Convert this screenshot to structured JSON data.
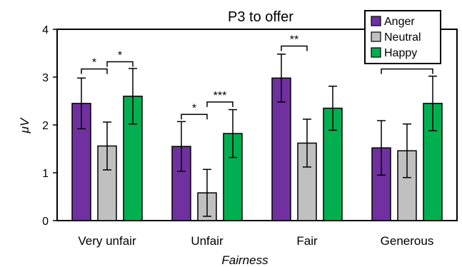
{
  "chart_data": {
    "type": "bar",
    "title": "P3 to offer",
    "xlabel": "Fairness",
    "ylabel": "μV",
    "ylim": [
      0,
      4
    ],
    "yticks": [
      "0",
      "1",
      "2",
      "3",
      "4"
    ],
    "grid": false,
    "legend_position": "top-right",
    "categories": [
      "Very unfair",
      "Unfair",
      "Fair",
      "Generous"
    ],
    "series": [
      {
        "name": "Anger",
        "color": "#7030a0",
        "values": [
          2.45,
          1.55,
          2.98,
          1.52
        ],
        "errors": [
          0.53,
          0.52,
          0.5,
          0.57
        ]
      },
      {
        "name": "Neutral",
        "color": "#c0c0c0",
        "values": [
          1.56,
          0.58,
          1.62,
          1.46
        ],
        "errors": [
          0.5,
          0.49,
          0.5,
          0.56
        ]
      },
      {
        "name": "Happy",
        "color": "#00b050",
        "values": [
          2.6,
          1.82,
          2.35,
          2.45
        ],
        "errors": [
          0.58,
          0.5,
          0.46,
          0.57
        ]
      }
    ],
    "annotations": [
      {
        "category": 0,
        "from": 0,
        "to": 1,
        "label": "*",
        "y": 3.17
      },
      {
        "category": 0,
        "from": 1,
        "to": 2,
        "label": "*",
        "y": 3.32
      },
      {
        "category": 1,
        "from": 0,
        "to": 1,
        "label": "*",
        "y": 2.22
      },
      {
        "category": 1,
        "from": 1,
        "to": 2,
        "label": "***",
        "y": 2.48
      },
      {
        "category": 2,
        "from": 0,
        "to": 1,
        "label": "**",
        "y": 3.65
      },
      {
        "category": 3,
        "from": 0,
        "to": 2,
        "label": "*",
        "y": 3.17
      }
    ]
  }
}
